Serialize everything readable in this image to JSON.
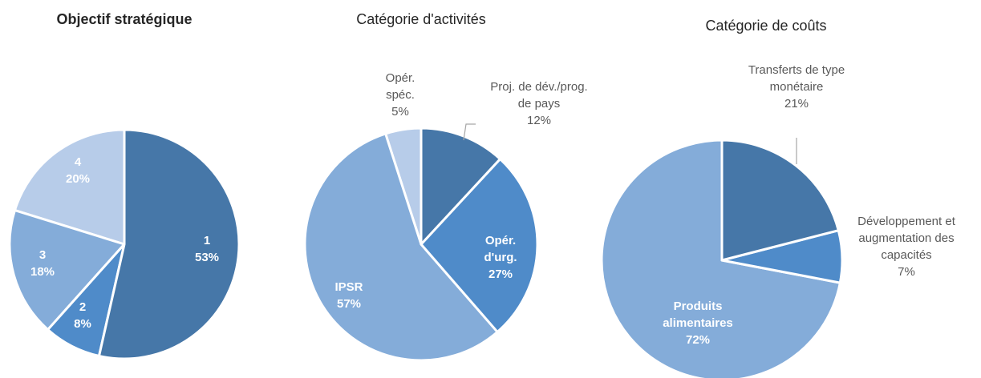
{
  "chart_data": [
    {
      "type": "pie",
      "title": "Objectif stratégique",
      "categories": [
        "1",
        "2",
        "3",
        "4"
      ],
      "values": [
        53,
        8,
        18,
        20
      ],
      "value_labels": [
        "53%",
        "8%",
        "18%",
        "20%"
      ],
      "colors": [
        "#4677a8",
        "#4f8bc9",
        "#84acd9",
        "#b7cce9"
      ]
    },
    {
      "type": "pie",
      "title": "Catégorie d'activités",
      "categories": [
        "Proj. de dév./prog. de pays",
        "Opér. d'urg.",
        "IPSR",
        "Opér. spéc."
      ],
      "values": [
        12,
        27,
        57,
        5
      ],
      "value_labels": [
        "12%",
        "27%",
        "57%",
        "5%"
      ],
      "colors": [
        "#4677a8",
        "#4f8bc9",
        "#84acd9",
        "#b7cce9"
      ]
    },
    {
      "type": "pie",
      "title": "Catégorie de coûts",
      "categories": [
        "Transferts de type monétaire",
        "Développement et augmentation des capacités",
        "Produits alimentaires"
      ],
      "values": [
        21,
        7,
        72
      ],
      "value_labels": [
        "21%",
        "7%",
        "72%"
      ],
      "colors": [
        "#4677a8",
        "#4f8bc9",
        "#84acd9"
      ]
    }
  ]
}
